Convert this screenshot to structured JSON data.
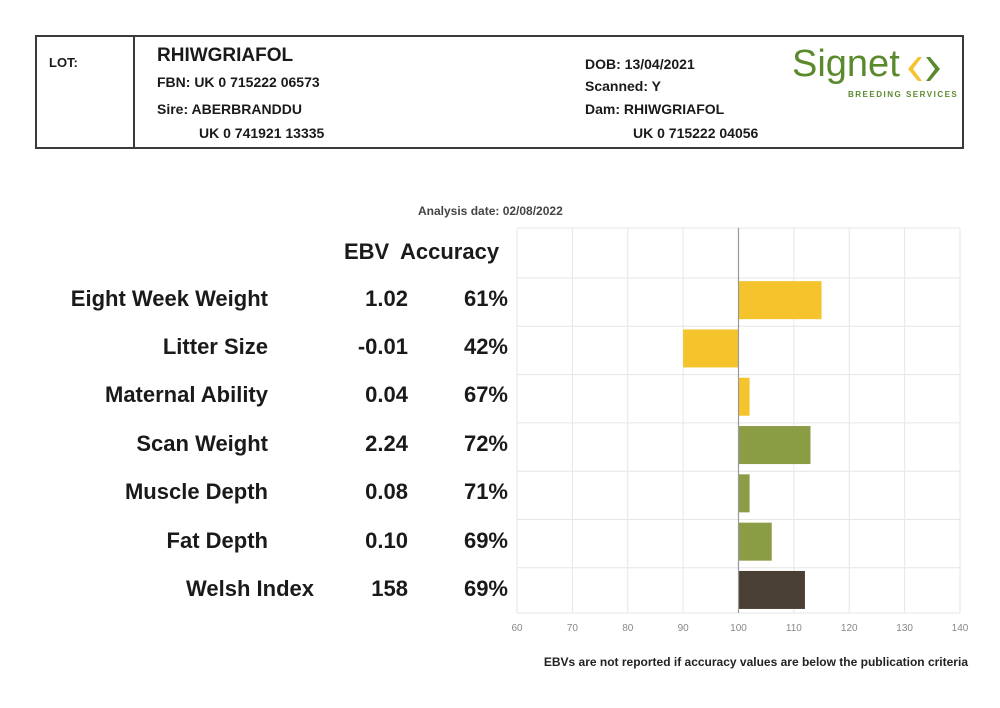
{
  "header": {
    "lot_label": "LOT:",
    "name": "RHIWGRIAFOL",
    "fbn": "FBN: UK 0 715222 06573",
    "sire": "Sire: ABERBRANDDU",
    "sire_id": "UK 0 741921 13335",
    "dob": "DOB: 13/04/2021",
    "scanned": "Scanned: Y",
    "dam": "Dam: RHIWGRIAFOL",
    "dam_id": "UK 0 715222 04056",
    "logo_text": "Signet",
    "logo_sub": "BREEDING SERVICES",
    "logo_color": "#5b8a2d"
  },
  "analysis_date": "Analysis date: 02/08/2022",
  "columns": {
    "ebv": "EBV",
    "accuracy": "Accuracy"
  },
  "footer_note": "EBVs are not reported if accuracy values are below the publication criteria",
  "chart_data": {
    "type": "bar",
    "orientation": "horizontal",
    "categories": [
      "Eight Week Weight",
      "Litter Size",
      "Maternal Ability",
      "Scan Weight",
      "Muscle Depth",
      "Fat Depth",
      "Welsh Index"
    ],
    "ebv": [
      "1.02",
      "-0.01",
      "0.04",
      "2.24",
      "0.08",
      "0.10",
      "158"
    ],
    "accuracy": [
      "61%",
      "42%",
      "67%",
      "72%",
      "71%",
      "69%",
      "69%"
    ],
    "values": [
      115,
      90,
      102,
      113,
      102,
      106,
      112
    ],
    "baseline": 100,
    "xlim": [
      60,
      140
    ],
    "xticks": [
      60,
      70,
      80,
      90,
      100,
      110,
      120,
      130,
      140
    ],
    "colors": [
      "#f5c32c",
      "#f5c32c",
      "#f5c32c",
      "#8a9c44",
      "#8a9c44",
      "#8a9c44",
      "#4a3f35"
    ],
    "grid": true
  }
}
